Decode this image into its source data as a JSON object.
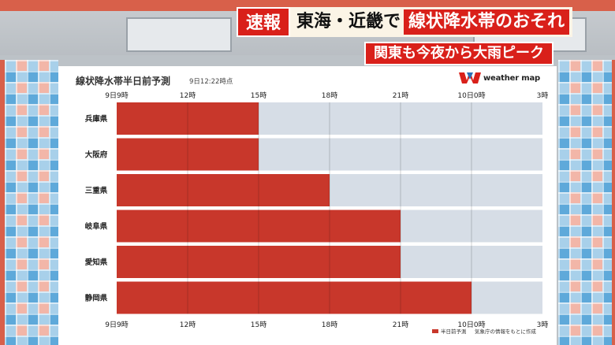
{
  "headline": {
    "urgent_tag": "速報",
    "main_prefix": "東海・近畿で",
    "main_highlight": "線状降水帯のおそれ",
    "sub": "関東も今夜から大雨ピーク"
  },
  "chart_header": {
    "title": "線状降水帯半日前予測",
    "timestamp": "9日12:22時点",
    "brand": "weather map"
  },
  "colors": {
    "bar": "#c8372b",
    "track": "#d6dde6",
    "banner_red": "#d9201a"
  },
  "chart_data": {
    "type": "bar",
    "orientation": "horizontal-timeline",
    "title": "線状降水帯半日前予測",
    "x_ticks": [
      "9日9時",
      "12時",
      "15時",
      "18時",
      "21時",
      "10日0時",
      "3時"
    ],
    "x_range_hours": [
      0,
      18
    ],
    "categories": [
      "兵庫県",
      "大阪府",
      "三重県",
      "岐阜県",
      "愛知県",
      "静岡県"
    ],
    "series": [
      {
        "name": "半日前予測",
        "start_hour": [
          0,
          0,
          0,
          0,
          0,
          0
        ],
        "end_hour": [
          6,
          6,
          9,
          12,
          12,
          15
        ]
      }
    ],
    "legend": {
      "label": "半日前予測",
      "placement": "bottom-right"
    },
    "source_note": "気象庁の情報をもとに作成",
    "grid": true
  }
}
